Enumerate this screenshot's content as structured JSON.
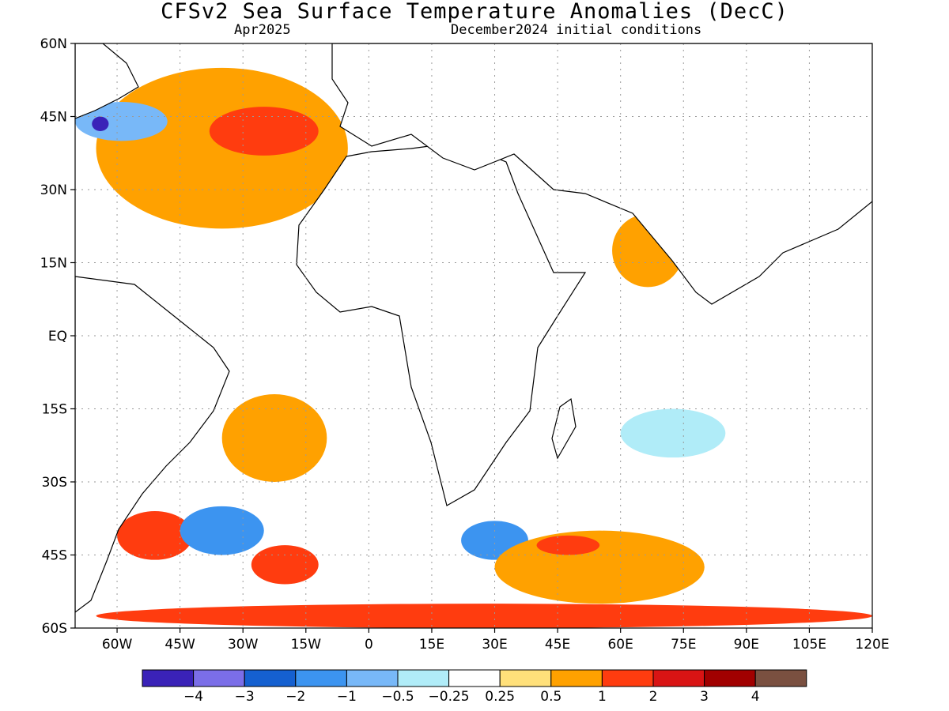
{
  "title": "CFSv2 Sea Surface Temperature Anomalies (DecC)",
  "valid_month": "Apr2025",
  "initial_conditions": "December2024 initial conditions",
  "map": {
    "lon_range": [
      -70,
      120
    ],
    "lat_range": [
      -60,
      60
    ],
    "lat_labels": [
      {
        "lat": 60,
        "text": "60N"
      },
      {
        "lat": 45,
        "text": "45N"
      },
      {
        "lat": 30,
        "text": "30N"
      },
      {
        "lat": 15,
        "text": "15N"
      },
      {
        "lat": 0,
        "text": "EQ"
      },
      {
        "lat": -15,
        "text": "15S"
      },
      {
        "lat": -30,
        "text": "30S"
      },
      {
        "lat": -45,
        "text": "45S"
      },
      {
        "lat": -60,
        "text": "60S"
      }
    ],
    "lon_labels": [
      {
        "lon": -60,
        "text": "60W"
      },
      {
        "lon": -45,
        "text": "45W"
      },
      {
        "lon": -30,
        "text": "30W"
      },
      {
        "lon": -15,
        "text": "15W"
      },
      {
        "lon": 0,
        "text": "0"
      },
      {
        "lon": 15,
        "text": "15E"
      },
      {
        "lon": 30,
        "text": "30E"
      },
      {
        "lon": 45,
        "text": "45E"
      },
      {
        "lon": 60,
        "text": "60E"
      },
      {
        "lon": 75,
        "text": "75E"
      },
      {
        "lon": 90,
        "text": "90E"
      },
      {
        "lon": 105,
        "text": "105E"
      },
      {
        "lon": 120,
        "text": "120E"
      }
    ],
    "grid": true
  },
  "colorbar": {
    "colors": [
      "#3a22b8",
      "#7b6ee8",
      "#1560d0",
      "#3c94f0",
      "#78b8f8",
      "#b0ecf8",
      "#ffffff",
      "#ffe07a",
      "#ffa100",
      "#ff3c0f",
      "#d91414",
      "#a10000",
      "#7a5040"
    ],
    "labels": [
      "−4",
      "−3",
      "−2",
      "−1",
      "−0.5",
      "−0.25",
      "0.25",
      "0.5",
      "1",
      "2",
      "3",
      "4"
    ]
  },
  "anomaly_regions": [
    {
      "name": "north-atlantic-warm",
      "fill": "#ffa100",
      "lon": [
        -65,
        -5
      ],
      "lat": [
        22,
        55
      ]
    },
    {
      "name": "north-atlantic-strong-warm",
      "fill": "#ff3c0f",
      "lon": [
        -38,
        -12
      ],
      "lat": [
        37,
        47
      ]
    },
    {
      "name": "gulf-stream-cold",
      "fill": "#78b8f8",
      "lon": [
        -70,
        -48
      ],
      "lat": [
        40,
        48
      ]
    },
    {
      "name": "nova-scotia-coldest",
      "fill": "#3a22b8",
      "lon": [
        -66,
        -62
      ],
      "lat": [
        42,
        45
      ]
    },
    {
      "name": "south-atlantic-warm",
      "fill": "#ffa100",
      "lon": [
        -35,
        -10
      ],
      "lat": [
        -30,
        -12
      ]
    },
    {
      "name": "argentine-basin-warm",
      "fill": "#ff3c0f",
      "lon": [
        -60,
        -42
      ],
      "lat": [
        -46,
        -36
      ]
    },
    {
      "name": "argentine-cold",
      "fill": "#3c94f0",
      "lon": [
        -45,
        -25
      ],
      "lat": [
        -45,
        -35
      ]
    },
    {
      "name": "south-atlantic-strong-warm",
      "fill": "#ff3c0f",
      "lon": [
        -28,
        -12
      ],
      "lat": [
        -51,
        -43
      ]
    },
    {
      "name": "agulhas-cold",
      "fill": "#3c94f0",
      "lon": [
        22,
        38
      ],
      "lat": [
        -46,
        -38
      ]
    },
    {
      "name": "south-indian-warm",
      "fill": "#ffa100",
      "lon": [
        30,
        80
      ],
      "lat": [
        -55,
        -40
      ]
    },
    {
      "name": "south-indian-strong-warm",
      "fill": "#ff3c0f",
      "lon": [
        40,
        55
      ],
      "lat": [
        -45,
        -41
      ]
    },
    {
      "name": "arabian-sea-warm",
      "fill": "#ffa100",
      "lon": [
        58,
        75
      ],
      "lat": [
        10,
        25
      ]
    },
    {
      "name": "indian-cool",
      "fill": "#b0ecf8",
      "lon": [
        60,
        85
      ],
      "lat": [
        -25,
        -15
      ]
    },
    {
      "name": "southern-ocean-warm",
      "fill": "#ff3c0f",
      "lon": [
        -65,
        120
      ],
      "lat": [
        -60,
        -55
      ]
    }
  ]
}
